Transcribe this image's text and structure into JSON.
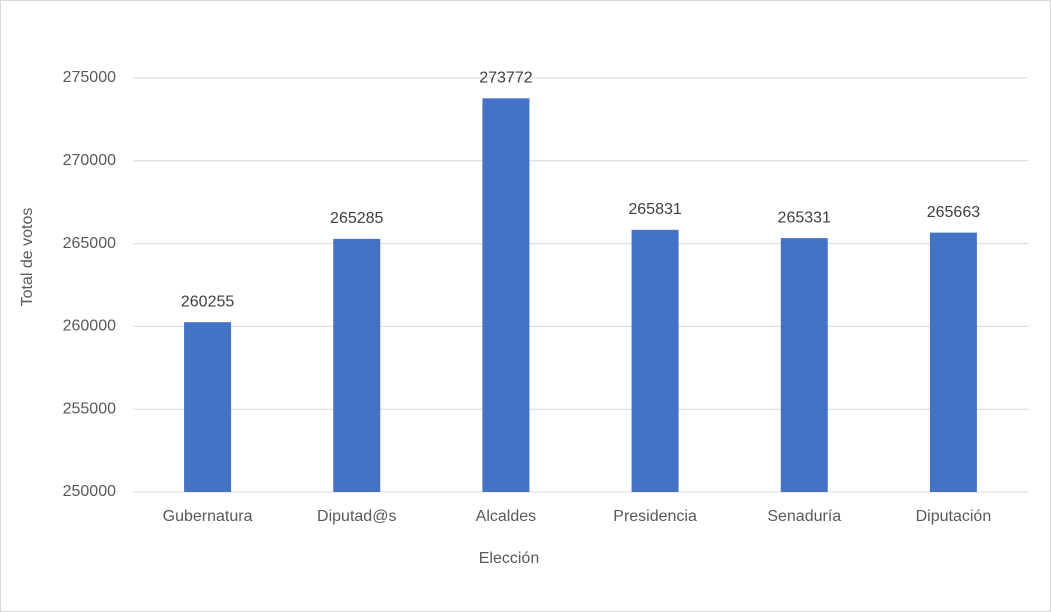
{
  "chart_data": {
    "type": "bar",
    "x_label": "Elección",
    "y_label": "Total de votos",
    "categories": [
      "Gubernatura",
      "Diputad@s",
      "Alcaldes",
      "Presidencia",
      "Senaduría",
      "Diputación"
    ],
    "values": [
      260255,
      265285,
      273772,
      265831,
      265331,
      265663
    ],
    "color": "#4472c4",
    "ylim": [
      250000,
      275000
    ],
    "yticks": [
      250000,
      255000,
      260000,
      265000,
      270000,
      275000
    ],
    "grid": true
  }
}
